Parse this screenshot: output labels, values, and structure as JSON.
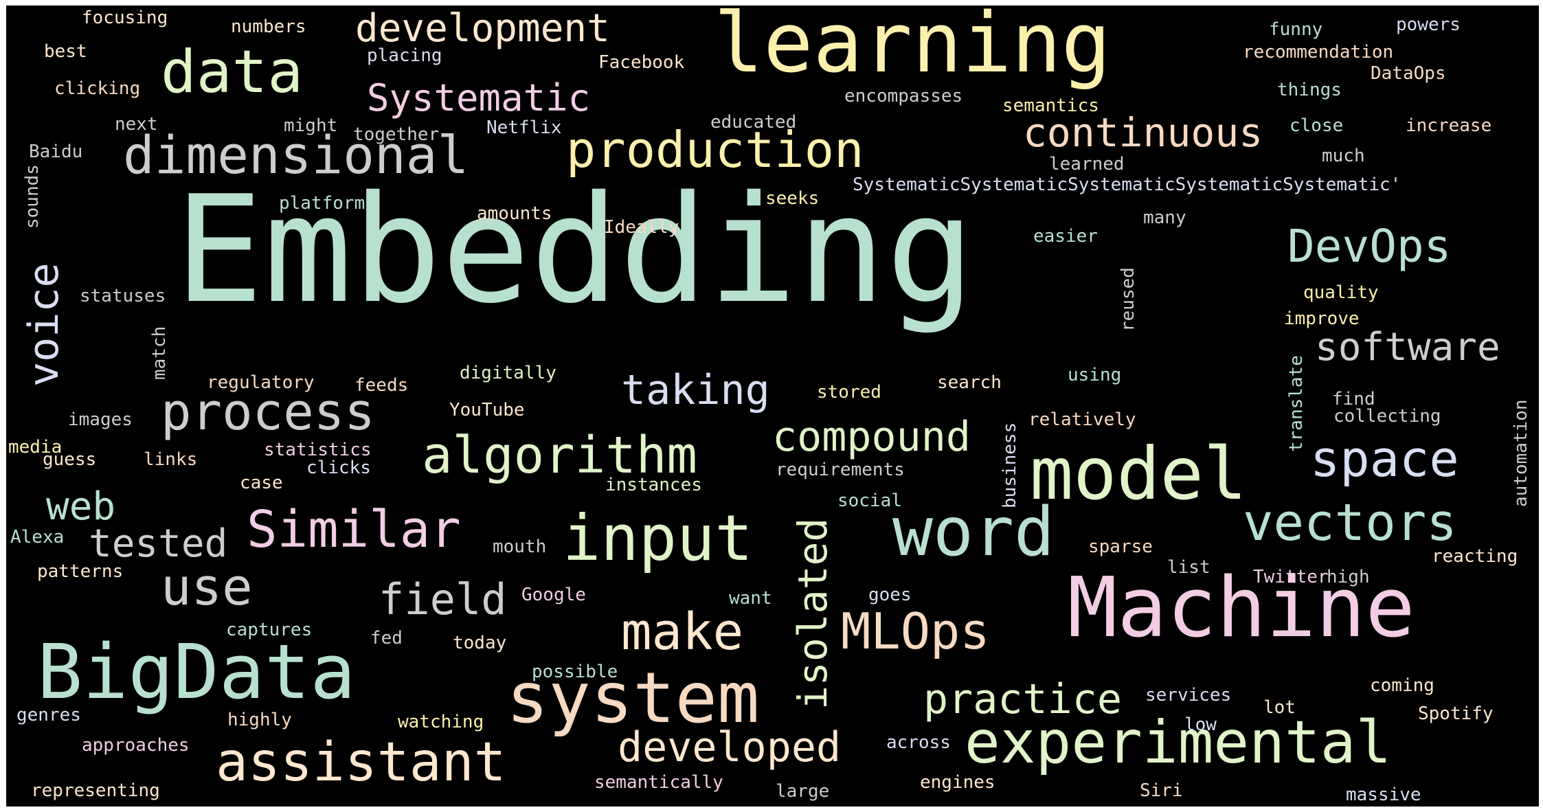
{
  "words": [
    {
      "text": "Embedding",
      "color": "#b8e0cf"
    },
    {
      "text": "learning",
      "color": "#fbf0ad"
    },
    {
      "text": "Machine",
      "color": "#f2cde3"
    },
    {
      "text": "data",
      "color": "#e1f3c8"
    },
    {
      "text": "development",
      "color": "#fde7ce"
    },
    {
      "text": "dimensional",
      "color": "#cdcdcd"
    },
    {
      "text": "production",
      "color": "#fbf0ad"
    },
    {
      "text": "Systematic",
      "color": "#f2cde3"
    },
    {
      "text": "continuous",
      "color": "#f8d9c2"
    },
    {
      "text": "voice",
      "color": "#d9def3"
    },
    {
      "text": "DevOps",
      "color": "#b8e0cf"
    },
    {
      "text": "software",
      "color": "#cdcdcd"
    },
    {
      "text": "process",
      "color": "#cdcdcd"
    },
    {
      "text": "algorithm",
      "color": "#e1f3c8"
    },
    {
      "text": "taking",
      "color": "#d9def3"
    },
    {
      "text": "compound",
      "color": "#e1f3c8"
    },
    {
      "text": "model",
      "color": "#e1f3c8"
    },
    {
      "text": "space",
      "color": "#d9def3"
    },
    {
      "text": "web",
      "color": "#b8e0cf"
    },
    {
      "text": "tested",
      "color": "#cdcdcd"
    },
    {
      "text": "Similar",
      "color": "#f2cde3"
    },
    {
      "text": "input",
      "color": "#e1f3c8"
    },
    {
      "text": "isolated",
      "color": "#e1f3c8"
    },
    {
      "text": "word",
      "color": "#b8e0cf"
    },
    {
      "text": "vectors",
      "color": "#b8e0cf"
    },
    {
      "text": "use",
      "color": "#cdcdcd"
    },
    {
      "text": "field",
      "color": "#cdcdcd"
    },
    {
      "text": "make",
      "color": "#fde7ce"
    },
    {
      "text": "MLOps",
      "color": "#f8d9c2"
    },
    {
      "text": "BigData",
      "color": "#b8e0cf"
    },
    {
      "text": "system",
      "color": "#f8d9c2"
    },
    {
      "text": "practice",
      "color": "#e1f3c8"
    },
    {
      "text": "developed",
      "color": "#fde7ce"
    },
    {
      "text": "experimental",
      "color": "#e1f3c8"
    },
    {
      "text": "assistant",
      "color": "#fde7ce"
    },
    {
      "text": "focusing",
      "color": "#fde7ce"
    },
    {
      "text": "numbers",
      "color": "#fde7ce"
    },
    {
      "text": "best",
      "color": "#fde7ce"
    },
    {
      "text": "placing",
      "color": "#d9def3"
    },
    {
      "text": "Facebook",
      "color": "#fde7ce"
    },
    {
      "text": "clicking",
      "color": "#f8d9c2"
    },
    {
      "text": "next",
      "color": "#cdcdcd"
    },
    {
      "text": "might",
      "color": "#cdcdcd"
    },
    {
      "text": "together",
      "color": "#cdcdcd"
    },
    {
      "text": "Netflix",
      "color": "#d9def3"
    },
    {
      "text": "educated",
      "color": "#cdcdcd"
    },
    {
      "text": "encompasses",
      "color": "#cdcdcd"
    },
    {
      "text": "semantics",
      "color": "#fbf0ad"
    },
    {
      "text": "funny",
      "color": "#b8e0cf"
    },
    {
      "text": "powers",
      "color": "#d9def3"
    },
    {
      "text": "recommendation",
      "color": "#f8d9c2"
    },
    {
      "text": "DataOps",
      "color": "#f8d9c2"
    },
    {
      "text": "things",
      "color": "#b8e0cf"
    },
    {
      "text": "close",
      "color": "#b8e0cf"
    },
    {
      "text": "increase",
      "color": "#f8d9c2"
    },
    {
      "text": "much",
      "color": "#cdcdcd"
    },
    {
      "text": "learned",
      "color": "#cdcdcd"
    },
    {
      "text": "Baidu",
      "color": "#cdcdcd"
    },
    {
      "text": "sounds",
      "color": "#cdcdcd"
    },
    {
      "text": "platform",
      "color": "#b8e0cf"
    },
    {
      "text": "amounts",
      "color": "#fde7ce"
    },
    {
      "text": "seeks",
      "color": "#fbf0ad"
    },
    {
      "text": "SystematicSystematicSystematicSystematicSystematic'",
      "color": "#d9def3"
    },
    {
      "text": "Ideally",
      "color": "#f8d9c2"
    },
    {
      "text": "easier",
      "color": "#b8e0cf"
    },
    {
      "text": "many",
      "color": "#cdcdcd"
    },
    {
      "text": "statuses",
      "color": "#cdcdcd"
    },
    {
      "text": "reused",
      "color": "#cdcdcd"
    },
    {
      "text": "quality",
      "color": "#fbf0ad"
    },
    {
      "text": "improve",
      "color": "#fbf0ad"
    },
    {
      "text": "match",
      "color": "#cdcdcd"
    },
    {
      "text": "regulatory",
      "color": "#f8d9c2"
    },
    {
      "text": "feeds",
      "color": "#f8d9c2"
    },
    {
      "text": "digitally",
      "color": "#e1f3c8"
    },
    {
      "text": "stored",
      "color": "#fbf0ad"
    },
    {
      "text": "search",
      "color": "#fde7ce"
    },
    {
      "text": "using",
      "color": "#b8e0cf"
    },
    {
      "text": "translate",
      "color": "#b8e0cf"
    },
    {
      "text": "find",
      "color": "#cdcdcd"
    },
    {
      "text": "collecting",
      "color": "#cdcdcd"
    },
    {
      "text": "automation",
      "color": "#cdcdcd"
    },
    {
      "text": "images",
      "color": "#cdcdcd"
    },
    {
      "text": "YouTube",
      "color": "#fde7ce"
    },
    {
      "text": "relatively",
      "color": "#f8d9c2"
    },
    {
      "text": "business",
      "color": "#d9def3"
    },
    {
      "text": "media",
      "color": "#fbf0ad"
    },
    {
      "text": "guess",
      "color": "#fde7ce"
    },
    {
      "text": "links",
      "color": "#f8d9c2"
    },
    {
      "text": "statistics",
      "color": "#f2cde3"
    },
    {
      "text": "clicks",
      "color": "#d9def3"
    },
    {
      "text": "case",
      "color": "#fde7ce"
    },
    {
      "text": "instances",
      "color": "#e1f3c8"
    },
    {
      "text": "requirements",
      "color": "#cdcdcd"
    },
    {
      "text": "social",
      "color": "#b8e0cf"
    },
    {
      "text": "Alexa",
      "color": "#b8e0cf"
    },
    {
      "text": "patterns",
      "color": "#fde7ce"
    },
    {
      "text": "mouth",
      "color": "#cdcdcd"
    },
    {
      "text": "sparse",
      "color": "#f8d9c2"
    },
    {
      "text": "list",
      "color": "#cdcdcd"
    },
    {
      "text": "Twitter",
      "color": "#f2cde3"
    },
    {
      "text": "high",
      "color": "#cdcdcd"
    },
    {
      "text": "reacting",
      "color": "#fde7ce"
    },
    {
      "text": "Google",
      "color": "#f2cde3"
    },
    {
      "text": "want",
      "color": "#b8e0cf"
    },
    {
      "text": "goes",
      "color": "#d9def3"
    },
    {
      "text": "captures",
      "color": "#b8e0cf"
    },
    {
      "text": "fed",
      "color": "#cdcdcd"
    },
    {
      "text": "today",
      "color": "#fde7ce"
    },
    {
      "text": "possible",
      "color": "#b8e0cf"
    },
    {
      "text": "services",
      "color": "#d9def3"
    },
    {
      "text": "coming",
      "color": "#fde7ce"
    },
    {
      "text": "genres",
      "color": "#d9def3"
    },
    {
      "text": "highly",
      "color": "#f8d9c2"
    },
    {
      "text": "watching",
      "color": "#fbf0ad"
    },
    {
      "text": "lot",
      "color": "#fde7ce"
    },
    {
      "text": "low",
      "color": "#d9def3"
    },
    {
      "text": "Spotify",
      "color": "#fde7ce"
    },
    {
      "text": "approaches",
      "color": "#f2cde3"
    },
    {
      "text": "across",
      "color": "#d9def3"
    },
    {
      "text": "representing",
      "color": "#fde7ce"
    },
    {
      "text": "semantically",
      "color": "#f2cde3"
    },
    {
      "text": "large",
      "color": "#cdcdcd"
    },
    {
      "text": "engines",
      "color": "#fde7ce"
    },
    {
      "text": "Siri",
      "color": "#f8d9c2"
    },
    {
      "text": "massive",
      "color": "#d9def3"
    }
  ]
}
